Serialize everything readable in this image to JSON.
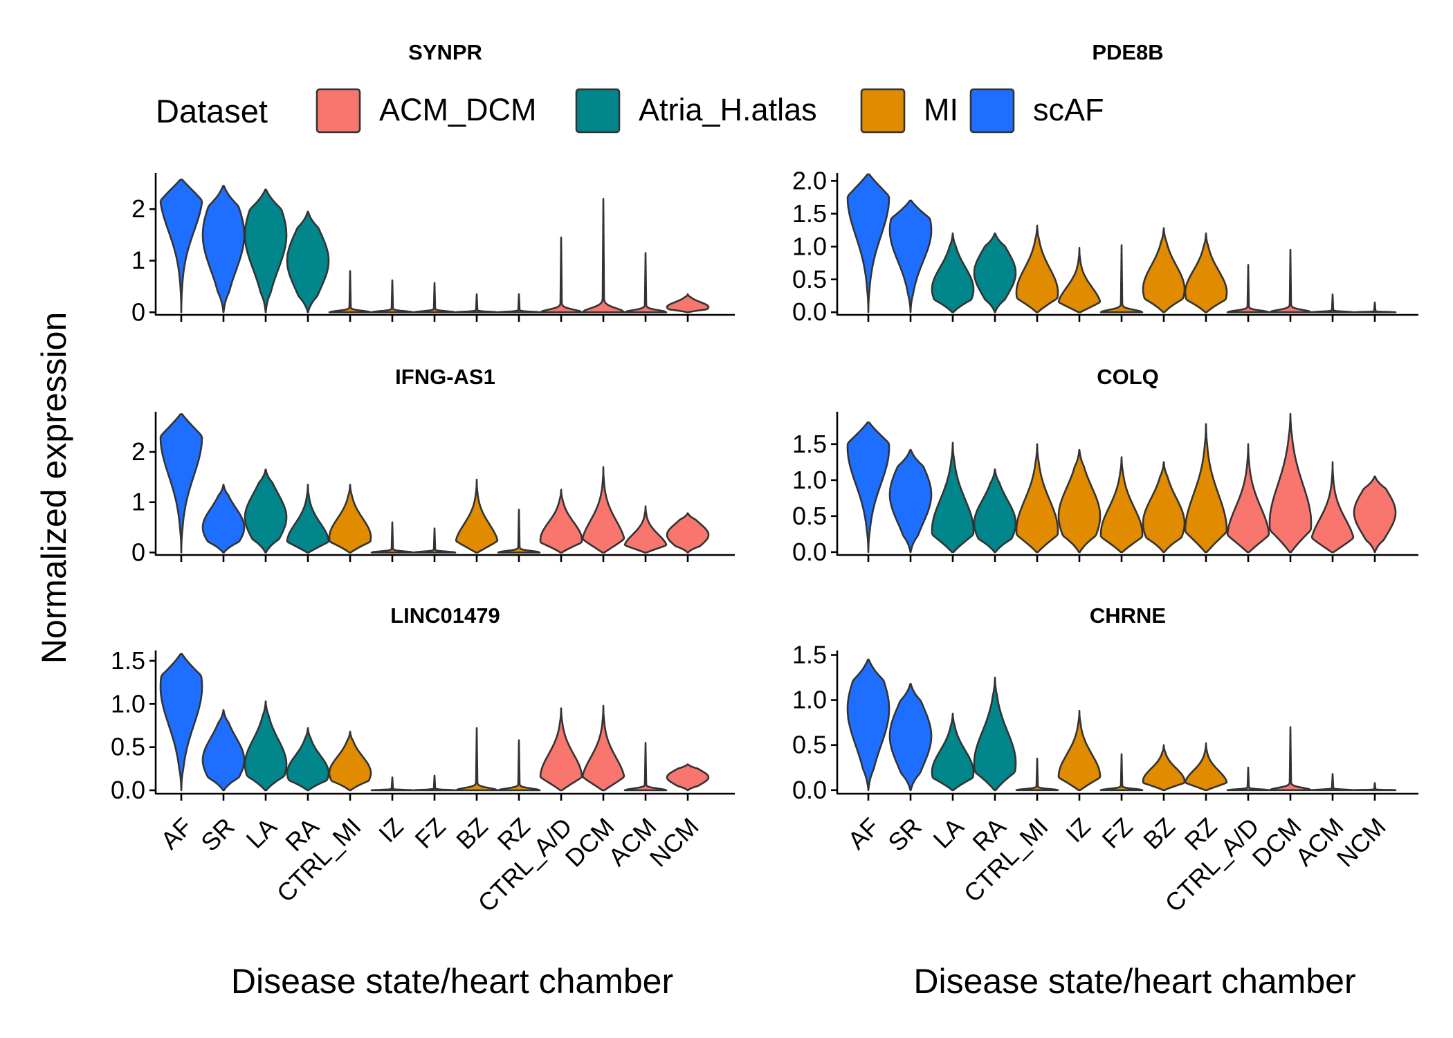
{
  "legend": {
    "title": "Dataset",
    "items": [
      {
        "label": "ACM_DCM",
        "color": "#F8766D"
      },
      {
        "label": "Atria_H.atlas",
        "color": "#00868B"
      },
      {
        "label": "MI",
        "color": "#E08B00"
      },
      {
        "label": "scAF",
        "color": "#1E6FFF"
      }
    ]
  },
  "ylabel": "Normalized expression",
  "chart_data": [
    {
      "type": "violin",
      "title": "SYNPR",
      "xlabel": "Disease state/heart chamber",
      "ylim": [
        -0.05,
        2.7
      ],
      "yticks": [
        0,
        1,
        2
      ],
      "ytick_labels": [
        "0",
        "1",
        "2"
      ],
      "categories": [
        "AF",
        "SR",
        "LA",
        "RA",
        "CTRL_MI",
        "IZ",
        "FZ",
        "BZ",
        "RZ",
        "CTRL_A/D",
        "DCM",
        "ACM",
        "NCM"
      ],
      "dataset": [
        "scAF",
        "scAF",
        "Atria_H.atlas",
        "Atria_H.atlas",
        "MI",
        "MI",
        "MI",
        "MI",
        "MI",
        "ACM_DCM",
        "ACM_DCM",
        "ACM_DCM",
        "ACM_DCM"
      ],
      "max": [
        2.57,
        2.45,
        2.38,
        1.95,
        0.8,
        0.62,
        0.57,
        0.35,
        0.35,
        1.45,
        2.2,
        1.15,
        0.35
      ],
      "median": [
        2.3,
        1.5,
        1.5,
        1.0,
        0,
        0,
        0,
        0,
        0,
        0,
        0,
        0,
        0.1
      ]
    },
    {
      "type": "violin",
      "title": "PDE8B",
      "xlabel": "Disease state/heart chamber",
      "ylim": [
        -0.04,
        2.12
      ],
      "yticks": [
        0,
        0.5,
        1.0,
        1.5,
        2.0
      ],
      "ytick_labels": [
        "0.0",
        "0.5",
        "1.0",
        "1.5",
        "2.0"
      ],
      "categories": [
        "AF",
        "SR",
        "LA",
        "RA",
        "CTRL_MI",
        "IZ",
        "FZ",
        "BZ",
        "RZ",
        "CTRL_A/D",
        "DCM",
        "ACM",
        "NCM"
      ],
      "dataset": [
        "scAF",
        "scAF",
        "Atria_H.atlas",
        "Atria_H.atlas",
        "MI",
        "MI",
        "MI",
        "MI",
        "MI",
        "ACM_DCM",
        "ACM_DCM",
        "ACM_DCM",
        "ACM_DCM"
      ],
      "max": [
        2.1,
        1.7,
        1.2,
        1.2,
        1.32,
        0.98,
        1.02,
        1.28,
        1.2,
        0.72,
        0.95,
        0.27,
        0.15
      ],
      "median": [
        1.75,
        1.25,
        0.35,
        0.6,
        0.3,
        0.1,
        0.05,
        0.35,
        0.3,
        0,
        0,
        0,
        0.03
      ]
    },
    {
      "type": "violin",
      "title": "IFNG-AS1",
      "xlabel": "Disease state/heart chamber",
      "ylim": [
        -0.05,
        2.8
      ],
      "yticks": [
        0,
        1,
        2
      ],
      "ytick_labels": [
        "0",
        "1",
        "2"
      ],
      "categories": [
        "AF",
        "SR",
        "LA",
        "RA",
        "CTRL_MI",
        "IZ",
        "FZ",
        "BZ",
        "RZ",
        "CTRL_A/D",
        "DCM",
        "ACM",
        "NCM"
      ],
      "dataset": [
        "scAF",
        "scAF",
        "Atria_H.atlas",
        "Atria_H.atlas",
        "MI",
        "MI",
        "MI",
        "MI",
        "MI",
        "ACM_DCM",
        "ACM_DCM",
        "ACM_DCM",
        "ACM_DCM"
      ],
      "max": [
        2.75,
        1.35,
        1.65,
        1.35,
        1.35,
        0.6,
        0.48,
        1.45,
        0.85,
        1.25,
        1.7,
        0.92,
        0.78
      ],
      "median": [
        2.3,
        0.5,
        0.7,
        0.2,
        0.3,
        0,
        0.05,
        0.15,
        0.05,
        0.25,
        0.15,
        0.1,
        0.35
      ]
    },
    {
      "type": "violin",
      "title": "COLQ",
      "xlabel": "Disease state/heart chamber",
      "ylim": [
        -0.04,
        1.95
      ],
      "yticks": [
        0,
        0.5,
        1.0,
        1.5
      ],
      "ytick_labels": [
        "0.0",
        "0.5",
        "1.0",
        "1.5"
      ],
      "categories": [
        "AF",
        "SR",
        "LA",
        "RA",
        "CTRL_MI",
        "IZ",
        "FZ",
        "BZ",
        "RZ",
        "CTRL_A/D",
        "DCM",
        "ACM",
        "NCM"
      ],
      "dataset": [
        "scAF",
        "scAF",
        "Atria_H.atlas",
        "Atria_H.atlas",
        "MI",
        "MI",
        "MI",
        "MI",
        "MI",
        "ACM_DCM",
        "ACM_DCM",
        "ACM_DCM",
        "ACM_DCM"
      ],
      "max": [
        1.8,
        1.42,
        1.52,
        1.15,
        1.5,
        1.42,
        1.32,
        1.25,
        1.78,
        1.5,
        1.92,
        1.25,
        1.05
      ],
      "median": [
        1.45,
        0.8,
        0.3,
        0.4,
        0.3,
        0.5,
        0.25,
        0.4,
        0.3,
        0.2,
        0.4,
        0.1,
        0.55
      ]
    },
    {
      "type": "violin",
      "title": "LINC01479",
      "xlabel": "Disease state/heart chamber",
      "ylim": [
        -0.04,
        1.62
      ],
      "yticks": [
        0,
        0.5,
        1.0,
        1.5
      ],
      "ytick_labels": [
        "0.0",
        "0.5",
        "1.0",
        "1.5"
      ],
      "categories": [
        "AF",
        "SR",
        "LA",
        "RA",
        "CTRL_MI",
        "IZ",
        "FZ",
        "BZ",
        "RZ",
        "CTRL_A/D",
        "DCM",
        "ACM",
        "NCM"
      ],
      "dataset": [
        "scAF",
        "scAF",
        "Atria_H.atlas",
        "Atria_H.atlas",
        "MI",
        "MI",
        "MI",
        "MI",
        "MI",
        "ACM_DCM",
        "ACM_DCM",
        "ACM_DCM",
        "ACM_DCM"
      ],
      "max": [
        1.58,
        0.93,
        1.03,
        0.72,
        0.68,
        0.15,
        0.17,
        0.72,
        0.58,
        0.95,
        0.98,
        0.55,
        0.3
      ],
      "median": [
        1.2,
        0.35,
        0.3,
        0.2,
        0.2,
        0,
        0,
        0.05,
        0.03,
        0.15,
        0.1,
        0.05,
        0.15
      ]
    },
    {
      "type": "violin",
      "title": "CHRNE",
      "xlabel": "Disease state/heart chamber",
      "ylim": [
        -0.04,
        1.55
      ],
      "yticks": [
        0,
        0.5,
        1.0,
        1.5
      ],
      "ytick_labels": [
        "0.0",
        "0.5",
        "1.0",
        "1.5"
      ],
      "categories": [
        "AF",
        "SR",
        "LA",
        "RA",
        "CTRL_MI",
        "IZ",
        "FZ",
        "BZ",
        "RZ",
        "CTRL_A/D",
        "DCM",
        "ACM",
        "NCM"
      ],
      "dataset": [
        "scAF",
        "scAF",
        "Atria_H.atlas",
        "Atria_H.atlas",
        "MI",
        "MI",
        "MI",
        "MI",
        "MI",
        "ACM_DCM",
        "ACM_DCM",
        "ACM_DCM",
        "ACM_DCM"
      ],
      "max": [
        1.45,
        1.18,
        0.85,
        1.25,
        0.35,
        0.88,
        0.4,
        0.5,
        0.52,
        0.25,
        0.7,
        0.18,
        0.08
      ],
      "median": [
        0.9,
        0.6,
        0.2,
        0.3,
        0.05,
        0.15,
        0.03,
        0.1,
        0.07,
        0,
        0,
        0,
        0
      ]
    }
  ]
}
